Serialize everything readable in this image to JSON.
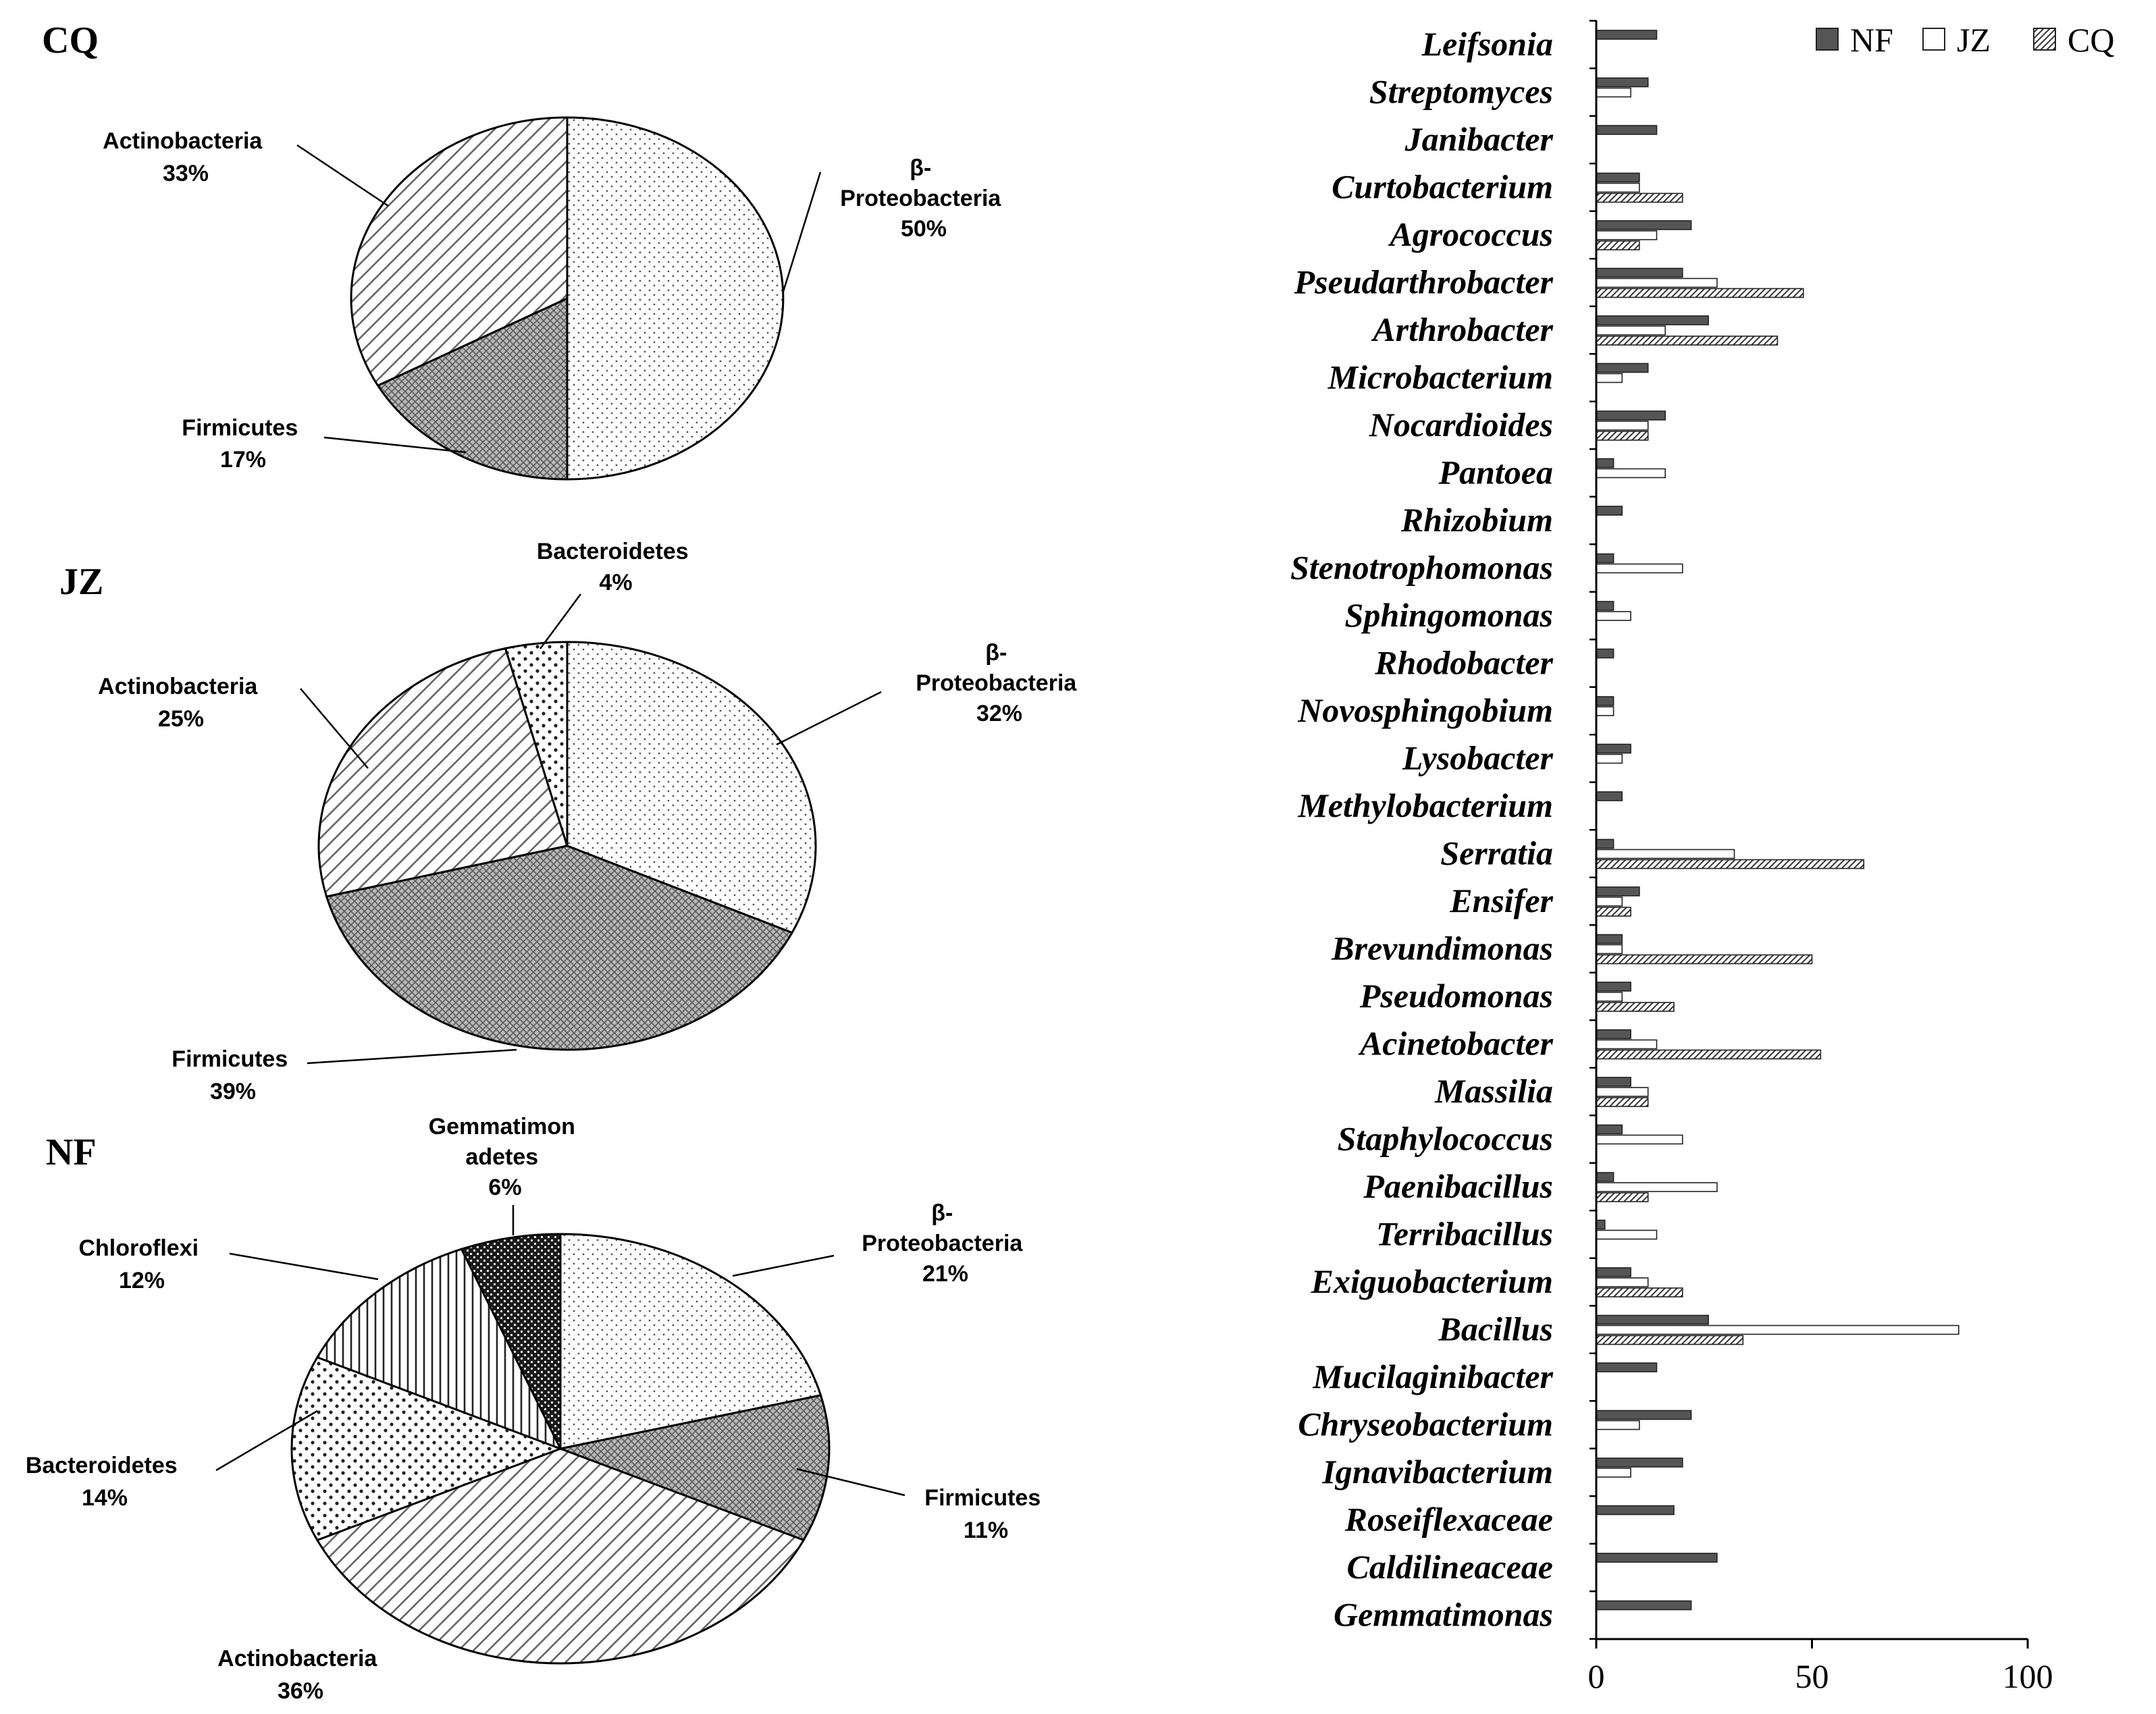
{
  "chart_data": [
    {
      "type": "pie",
      "title": "CQ",
      "slices": [
        {
          "label_lines": [
            "β-",
            "Proteobacteria"
          ],
          "pct_label": "50%",
          "value": 50,
          "pattern": "dots"
        },
        {
          "label_lines": [
            "Firmicutes"
          ],
          "pct_label": "17%",
          "value": 17,
          "pattern": "crosshatch"
        },
        {
          "label_lines": [
            "Actinobacteria"
          ],
          "pct_label": "33%",
          "value": 33,
          "pattern": "diag"
        }
      ]
    },
    {
      "type": "pie",
      "title": "JZ",
      "slices": [
        {
          "label_lines": [
            "β-",
            "Proteobacteria"
          ],
          "pct_label": "32%",
          "value": 32,
          "pattern": "dots"
        },
        {
          "label_lines": [
            "Firmicutes"
          ],
          "pct_label": "39%",
          "value": 39,
          "pattern": "crosshatch"
        },
        {
          "label_lines": [
            "Actinobacteria"
          ],
          "pct_label": "25%",
          "value": 25,
          "pattern": "diag"
        },
        {
          "label_lines": [
            "Bacteroidetes"
          ],
          "pct_label": "4%",
          "value": 4,
          "pattern": "bigdots"
        }
      ]
    },
    {
      "type": "pie",
      "title": "NF",
      "slices": [
        {
          "label_lines": [
            "β-",
            "Proteobacteria"
          ],
          "pct_label": "21%",
          "value": 21,
          "pattern": "dots"
        },
        {
          "label_lines": [
            "Firmicutes"
          ],
          "pct_label": "11%",
          "value": 11,
          "pattern": "crosshatch"
        },
        {
          "label_lines": [
            "Actinobacteria"
          ],
          "pct_label": "36%",
          "value": 36,
          "pattern": "diag"
        },
        {
          "label_lines": [
            "Bacteroidetes"
          ],
          "pct_label": "14%",
          "value": 14,
          "pattern": "bigdots"
        },
        {
          "label_lines": [
            "Chloroflexi"
          ],
          "pct_label": "12%",
          "value": 12,
          "pattern": "vlines"
        },
        {
          "label_lines": [
            "Gemmatimon",
            "adetes"
          ],
          "pct_label": "6%",
          "value": 6,
          "pattern": "dark"
        }
      ]
    },
    {
      "type": "bar",
      "orientation": "horizontal",
      "xlim": [
        0,
        100
      ],
      "xticks": [
        0,
        50,
        100
      ],
      "legend_position": "top-right",
      "series": [
        {
          "name": "NF",
          "style": "solid"
        },
        {
          "name": "JZ",
          "style": "open"
        },
        {
          "name": "CQ",
          "style": "hatched"
        }
      ],
      "categories": [
        {
          "name": "Leifsonia",
          "NF": 14,
          "JZ": 0,
          "CQ": 0
        },
        {
          "name": "Streptomyces",
          "NF": 12,
          "JZ": 8,
          "CQ": 0
        },
        {
          "name": "Janibacter",
          "NF": 14,
          "JZ": 0,
          "CQ": 0
        },
        {
          "name": "Curtobacterium",
          "NF": 10,
          "JZ": 10,
          "CQ": 20
        },
        {
          "name": "Agrococcus",
          "NF": 22,
          "JZ": 14,
          "CQ": 10
        },
        {
          "name": "Pseudarthrobacter",
          "NF": 20,
          "JZ": 28,
          "CQ": 48
        },
        {
          "name": "Arthrobacter",
          "NF": 26,
          "JZ": 16,
          "CQ": 42
        },
        {
          "name": "Microbacterium",
          "NF": 12,
          "JZ": 6,
          "CQ": 0
        },
        {
          "name": "Nocardioides",
          "NF": 16,
          "JZ": 12,
          "CQ": 12
        },
        {
          "name": "Pantoea",
          "NF": 4,
          "JZ": 16,
          "CQ": 0
        },
        {
          "name": "Rhizobium",
          "NF": 6,
          "JZ": 0,
          "CQ": 0
        },
        {
          "name": "Stenotrophomonas",
          "NF": 4,
          "JZ": 20,
          "CQ": 0
        },
        {
          "name": "Sphingomonas",
          "NF": 4,
          "JZ": 8,
          "CQ": 0
        },
        {
          "name": "Rhodobacter",
          "NF": 4,
          "JZ": 0,
          "CQ": 0
        },
        {
          "name": "Novosphingobium",
          "NF": 4,
          "JZ": 4,
          "CQ": 0
        },
        {
          "name": "Lysobacter",
          "NF": 8,
          "JZ": 6,
          "CQ": 0
        },
        {
          "name": "Methylobacterium",
          "NF": 6,
          "JZ": 0,
          "CQ": 0
        },
        {
          "name": "Serratia",
          "NF": 4,
          "JZ": 32,
          "CQ": 62
        },
        {
          "name": "Ensifer",
          "NF": 10,
          "JZ": 6,
          "CQ": 8
        },
        {
          "name": "Brevundimonas",
          "NF": 6,
          "JZ": 6,
          "CQ": 50
        },
        {
          "name": "Pseudomonas",
          "NF": 8,
          "JZ": 6,
          "CQ": 18
        },
        {
          "name": "Acinetobacter",
          "NF": 8,
          "JZ": 14,
          "CQ": 52
        },
        {
          "name": "Massilia",
          "NF": 8,
          "JZ": 12,
          "CQ": 12
        },
        {
          "name": "Staphylococcus",
          "NF": 6,
          "JZ": 20,
          "CQ": 0
        },
        {
          "name": "Paenibacillus",
          "NF": 4,
          "JZ": 28,
          "CQ": 12
        },
        {
          "name": "Terribacillus",
          "NF": 2,
          "JZ": 14,
          "CQ": 0
        },
        {
          "name": "Exiguobacterium",
          "NF": 8,
          "JZ": 12,
          "CQ": 20
        },
        {
          "name": "Bacillus",
          "NF": 26,
          "JZ": 84,
          "CQ": 34
        },
        {
          "name": "Mucilaginibacter",
          "NF": 14,
          "JZ": 0,
          "CQ": 0
        },
        {
          "name": "Chryseobacterium",
          "NF": 22,
          "JZ": 10,
          "CQ": 0
        },
        {
          "name": "Ignavibacterium",
          "NF": 20,
          "JZ": 8,
          "CQ": 0
        },
        {
          "name": "Roseiflexaceae",
          "NF": 18,
          "JZ": 0,
          "CQ": 0
        },
        {
          "name": "Caldilineaceae",
          "NF": 28,
          "JZ": 0,
          "CQ": 0
        },
        {
          "name": "Gemmatimonas",
          "NF": 22,
          "JZ": 0,
          "CQ": 0
        }
      ]
    }
  ]
}
